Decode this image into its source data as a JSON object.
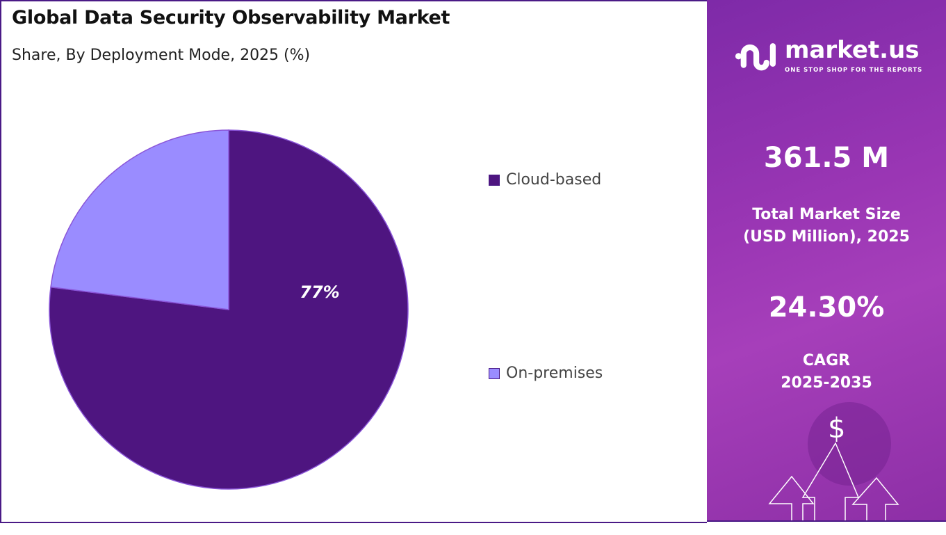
{
  "header": {
    "title": "Global Data Security Observability Market",
    "subtitle": "Share, By Deployment Mode, 2025 (%)"
  },
  "chart_data": {
    "type": "pie",
    "title": "Global Data Security Observability Market",
    "subtitle": "Share, By Deployment Mode, 2025 (%)",
    "categories": [
      "Cloud-based",
      "On-premises"
    ],
    "values": [
      77,
      23
    ],
    "data_labels": [
      "77%",
      ""
    ],
    "colors": [
      "#4e1580",
      "#9a8cff"
    ],
    "legend_position": "right"
  },
  "panel": {
    "logo": {
      "name": "market.us",
      "tagline": "ONE STOP SHOP FOR THE REPORTS"
    },
    "market_size": "361.5 M",
    "market_size_label_1": "Total Market Size",
    "market_size_label_2": "(USD Million), 2025",
    "cagr": "24.30%",
    "cagr_label_1": "CAGR",
    "cagr_label_2": "2025-2035",
    "dollar": "$"
  }
}
